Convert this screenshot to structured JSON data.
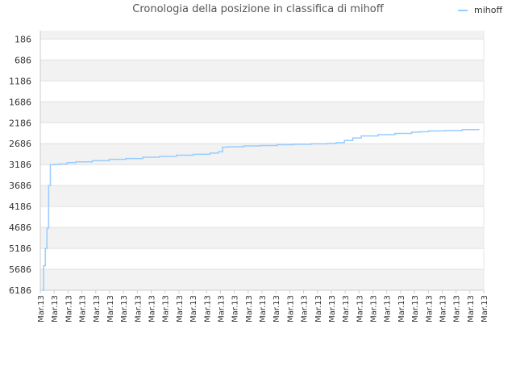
{
  "chart_data": {
    "type": "line",
    "title": "Cronologia della posizione in classifica di mihoff",
    "xlabel": "",
    "ylabel": "",
    "y_reversed": true,
    "ylim": [
      6186,
      -14
    ],
    "yticks": [
      186,
      686,
      1186,
      1686,
      2186,
      2686,
      3186,
      3686,
      4186,
      4686,
      5186,
      5686,
      6186
    ],
    "xtick_labels": [
      "Mar.13",
      "Mar.13",
      "Mar.13",
      "Mar.13",
      "Mar.13",
      "Mar.13",
      "Mar.13",
      "Mar.13",
      "Mar.13",
      "Mar.13",
      "Mar.13",
      "Mar.13",
      "Mar.13",
      "Mar.13",
      "Mar.13",
      "Mar.13",
      "Mar.13",
      "Mar.13",
      "Mar.13",
      "Mar.13",
      "Mar.13",
      "Mar.13",
      "Mar.13",
      "Mar.13",
      "Mar.13",
      "Mar.13",
      "Mar.13",
      "Mar.13",
      "Mar.13",
      "Mar.13",
      "Mar.13",
      "Mar.13",
      "Mar.13"
    ],
    "grid": true,
    "legend_position": "top-right",
    "series": [
      {
        "name": "mihoff",
        "color": "#99ccff",
        "x": [
          0,
          0.2,
          0.4,
          0.6,
          0.8,
          1,
          1.5,
          2,
          3,
          4,
          6,
          8,
          10,
          12,
          14,
          16,
          18,
          20,
          21,
          21.5,
          22,
          24,
          26,
          28,
          30,
          32,
          34,
          35,
          36,
          37,
          38,
          40,
          42,
          44,
          45,
          46,
          48,
          50,
          52
        ],
        "y": [
          6186,
          5600,
          5186,
          4700,
          3686,
          3186,
          3180,
          3170,
          3140,
          3120,
          3090,
          3060,
          3040,
          3010,
          2990,
          2960,
          2940,
          2910,
          2880,
          2770,
          2760,
          2740,
          2730,
          2710,
          2700,
          2690,
          2680,
          2660,
          2610,
          2550,
          2500,
          2470,
          2440,
          2410,
          2400,
          2380,
          2370,
          2350,
          2340
        ]
      }
    ]
  }
}
